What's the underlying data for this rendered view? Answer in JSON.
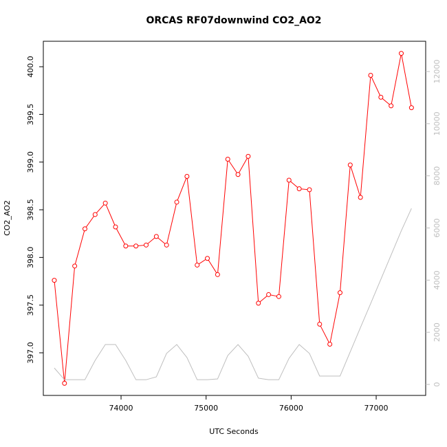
{
  "chart_data": {
    "type": "line",
    "title": "ORCAS RF07downwind CO2_AO2",
    "x_label": "UTC Seconds",
    "y_label": "CO2_AO2",
    "x": [
      73215,
      73335,
      73455,
      73575,
      73695,
      73815,
      73935,
      74055,
      74175,
      74295,
      74415,
      74535,
      74655,
      74775,
      74895,
      75015,
      75135,
      75255,
      75375,
      75495,
      75615,
      75735,
      75855,
      75975,
      76095,
      76215,
      76335,
      76455,
      76575,
      76695,
      76815,
      76935,
      77055,
      77175,
      77295,
      77415
    ],
    "series": [
      {
        "color": "#ff0000",
        "values": [
          397.76,
          396.68,
          397.91,
          398.3,
          398.45,
          398.57,
          398.32,
          398.12,
          398.12,
          398.13,
          398.22,
          398.13,
          398.58,
          398.85,
          397.92,
          397.99,
          397.82,
          399.03,
          398.87,
          399.06,
          397.52,
          397.61,
          397.59,
          398.81,
          398.72,
          398.71,
          397.3,
          397.09,
          397.63,
          398.97,
          398.63,
          399.91,
          399.68,
          399.59,
          400.14,
          399.57
        ]
      },
      {
        "color": "#bebebe",
        "axis": "y2",
        "values": [
          630,
          180,
          180,
          180,
          920,
          1530,
          1530,
          920,
          180,
          180,
          290,
          1190,
          1530,
          1030,
          180,
          180,
          210,
          1110,
          1530,
          1080,
          240,
          180,
          180,
          1000,
          1530,
          1190,
          320,
          320,
          320,
          1250,
          2180,
          3100,
          4030,
          4960,
          5890,
          6750
        ]
      }
    ],
    "xlim": [
      73086,
      77582
    ],
    "xticks": [
      74000,
      75000,
      76000,
      77000
    ],
    "ylim": [
      396.553,
      400.267
    ],
    "yticks": [
      {
        "value": 397,
        "label": "397.0"
      },
      {
        "value": 397.5,
        "label": "397.5"
      },
      {
        "value": 398,
        "label": "398.0"
      },
      {
        "value": 398.5,
        "label": "398.5"
      },
      {
        "value": 399,
        "label": "399.0"
      },
      {
        "value": 399.5,
        "label": "399.5"
      },
      {
        "value": 400,
        "label": "400.0"
      }
    ],
    "y2lim": [
      -422,
      13161
    ],
    "y2ticks": [
      0,
      2000,
      4000,
      6000,
      8000,
      10000,
      12000
    ]
  }
}
